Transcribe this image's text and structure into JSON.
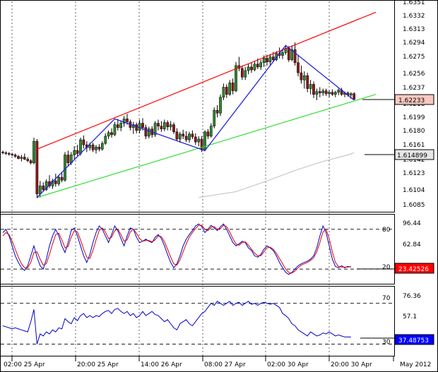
{
  "colors": {
    "background": "#ffffff",
    "candle_up": "#2e8b2e",
    "candle_down": "#8b1a1a",
    "channel_upper": "#ff0000",
    "channel_lower": "#33dd33",
    "zigzag": "#2222dd",
    "moving_average": "#c8c8c8",
    "stoch_main": "#0000cc",
    "stoch_signal": "#dd0000",
    "rsi_line": "#0000cc",
    "frame": "#000000",
    "level_line": "#000000",
    "label_price": "#f6c8c0",
    "label_ma": "#e6e6e6",
    "label_stoch": "#ff0000",
    "label_rsi": "#0000ff"
  },
  "chart_data": [
    {
      "panel": "price",
      "type": "candlestick",
      "ylim": [
        1.6075,
        1.6357
      ],
      "yticks": [
        "1.6351",
        "1.6332",
        "1.6313",
        "1.6294",
        "1.6275",
        "1.6256",
        "1.6237",
        "1.6218",
        "1.6199",
        "1.6180",
        "1.6161",
        "1.6142",
        "1.6123",
        "1.6104",
        "1.6085"
      ],
      "current_price_label": "1.62233",
      "moving_average_label": "1.614899",
      "candles": [
        [
          1.615,
          1.6152,
          1.6147,
          1.6149
        ],
        [
          1.6149,
          1.6151,
          1.6146,
          1.6148
        ],
        [
          1.6148,
          1.615,
          1.6145,
          1.6147
        ],
        [
          1.6147,
          1.6149,
          1.6144,
          1.6146
        ],
        [
          1.6146,
          1.6148,
          1.6142,
          1.6144
        ],
        [
          1.6144,
          1.6146,
          1.614,
          1.6141
        ],
        [
          1.6141,
          1.6146,
          1.6137,
          1.6143
        ],
        [
          1.6143,
          1.6148,
          1.6139,
          1.614
        ],
        [
          1.614,
          1.6143,
          1.6136,
          1.6138
        ],
        [
          1.6138,
          1.614,
          1.6133,
          1.6135
        ],
        [
          1.6135,
          1.617,
          1.6133,
          1.6165
        ],
        [
          1.6165,
          1.6168,
          1.6086,
          1.6092
        ],
        [
          1.6092,
          1.611,
          1.6087,
          1.6103
        ],
        [
          1.6103,
          1.6108,
          1.6095,
          1.6098
        ],
        [
          1.6098,
          1.6112,
          1.6096,
          1.6109
        ],
        [
          1.6109,
          1.6118,
          1.61,
          1.6103
        ],
        [
          1.6103,
          1.6113,
          1.6099,
          1.611
        ],
        [
          1.611,
          1.612,
          1.6102,
          1.6106
        ],
        [
          1.6106,
          1.6118,
          1.6103,
          1.6115
        ],
        [
          1.6115,
          1.6122,
          1.6108,
          1.6111
        ],
        [
          1.6111,
          1.615,
          1.6109,
          1.6146
        ],
        [
          1.6146,
          1.6152,
          1.613,
          1.6135
        ],
        [
          1.6135,
          1.615,
          1.6132,
          1.6146
        ],
        [
          1.6146,
          1.6158,
          1.614,
          1.6152
        ],
        [
          1.6152,
          1.616,
          1.6144,
          1.6148
        ],
        [
          1.6148,
          1.617,
          1.6145,
          1.6167
        ],
        [
          1.6167,
          1.6173,
          1.6155,
          1.616
        ],
        [
          1.616,
          1.6165,
          1.615,
          1.6156
        ],
        [
          1.6156,
          1.6163,
          1.6152,
          1.616
        ],
        [
          1.616,
          1.6163,
          1.615,
          1.6153
        ],
        [
          1.6153,
          1.616,
          1.6148,
          1.6157
        ],
        [
          1.6157,
          1.6161,
          1.6151,
          1.6154
        ],
        [
          1.6154,
          1.6165,
          1.6152,
          1.6162
        ],
        [
          1.6162,
          1.6176,
          1.616,
          1.6172
        ],
        [
          1.6172,
          1.618,
          1.6168,
          1.6177
        ],
        [
          1.6177,
          1.6183,
          1.617,
          1.6174
        ],
        [
          1.6174,
          1.6192,
          1.6172,
          1.6188
        ],
        [
          1.6188,
          1.6196,
          1.618,
          1.6184
        ],
        [
          1.6184,
          1.6194,
          1.6179,
          1.619
        ],
        [
          1.619,
          1.62,
          1.6185,
          1.6196
        ],
        [
          1.6196,
          1.6203,
          1.6188,
          1.6192
        ],
        [
          1.6192,
          1.6195,
          1.618,
          1.6184
        ],
        [
          1.6184,
          1.6192,
          1.6175,
          1.6188
        ],
        [
          1.6188,
          1.6191,
          1.6176,
          1.618
        ],
        [
          1.618,
          1.6195,
          1.6176,
          1.619
        ],
        [
          1.619,
          1.6197,
          1.618,
          1.6184
        ],
        [
          1.6184,
          1.6188,
          1.6168,
          1.6172
        ],
        [
          1.6172,
          1.6185,
          1.6169,
          1.6182
        ],
        [
          1.6182,
          1.6186,
          1.617,
          1.6174
        ],
        [
          1.6174,
          1.6193,
          1.6171,
          1.619
        ],
        [
          1.619,
          1.6195,
          1.618,
          1.6186
        ],
        [
          1.6186,
          1.6193,
          1.6178,
          1.6182
        ],
        [
          1.6182,
          1.6195,
          1.6179,
          1.6191
        ],
        [
          1.6191,
          1.6194,
          1.618,
          1.6185
        ],
        [
          1.6185,
          1.6193,
          1.618,
          1.6188
        ],
        [
          1.6188,
          1.6191,
          1.6175,
          1.6178
        ],
        [
          1.6178,
          1.6183,
          1.6165,
          1.6168
        ],
        [
          1.6168,
          1.6178,
          1.6163,
          1.6175
        ],
        [
          1.6175,
          1.6181,
          1.6168,
          1.6172
        ],
        [
          1.6172,
          1.6179,
          1.6164,
          1.6167
        ],
        [
          1.6167,
          1.6178,
          1.6163,
          1.6175
        ],
        [
          1.6175,
          1.618,
          1.6168,
          1.6171
        ],
        [
          1.6171,
          1.6176,
          1.616,
          1.6164
        ],
        [
          1.6164,
          1.6172,
          1.6158,
          1.6168
        ],
        [
          1.6168,
          1.6172,
          1.615,
          1.6153
        ],
        [
          1.6153,
          1.618,
          1.6151,
          1.6178
        ],
        [
          1.6178,
          1.6182,
          1.6168,
          1.6172
        ],
        [
          1.6172,
          1.619,
          1.617,
          1.6186
        ],
        [
          1.6186,
          1.6212,
          1.6183,
          1.6208
        ],
        [
          1.6208,
          1.6215,
          1.6198,
          1.6204
        ],
        [
          1.6204,
          1.623,
          1.62,
          1.6226
        ],
        [
          1.6226,
          1.6245,
          1.6222,
          1.624
        ],
        [
          1.624,
          1.6244,
          1.6225,
          1.623
        ],
        [
          1.623,
          1.625,
          1.6228,
          1.6246
        ],
        [
          1.6246,
          1.6252,
          1.623,
          1.6235
        ],
        [
          1.6235,
          1.6275,
          1.6233,
          1.627
        ],
        [
          1.627,
          1.6282,
          1.6262,
          1.6266
        ],
        [
          1.6266,
          1.627,
          1.625,
          1.6254
        ],
        [
          1.6254,
          1.6268,
          1.625,
          1.6263
        ],
        [
          1.6263,
          1.6272,
          1.6258,
          1.6268
        ],
        [
          1.6268,
          1.6274,
          1.626,
          1.6264
        ],
        [
          1.6264,
          1.6276,
          1.6262,
          1.6272
        ],
        [
          1.6272,
          1.628,
          1.6265,
          1.6268
        ],
        [
          1.6268,
          1.6278,
          1.6264,
          1.6274
        ],
        [
          1.6274,
          1.6284,
          1.6268,
          1.628
        ],
        [
          1.628,
          1.6285,
          1.627,
          1.6275
        ],
        [
          1.6275,
          1.6286,
          1.6271,
          1.6282
        ],
        [
          1.6282,
          1.6289,
          1.6275,
          1.6278
        ],
        [
          1.6278,
          1.629,
          1.6276,
          1.6287
        ],
        [
          1.6287,
          1.6295,
          1.628,
          1.6284
        ],
        [
          1.6284,
          1.6292,
          1.6279,
          1.6288
        ],
        [
          1.6288,
          1.6298,
          1.6285,
          1.6294
        ],
        [
          1.6294,
          1.6297,
          1.6275,
          1.6278
        ],
        [
          1.6278,
          1.6298,
          1.6276,
          1.6292
        ],
        [
          1.6292,
          1.6302,
          1.627,
          1.6274
        ],
        [
          1.6274,
          1.6285,
          1.6255,
          1.626
        ],
        [
          1.626,
          1.627,
          1.6245,
          1.625
        ],
        [
          1.625,
          1.6262,
          1.6238,
          1.6256
        ],
        [
          1.6256,
          1.626,
          1.6233,
          1.6238
        ],
        [
          1.6238,
          1.625,
          1.623,
          1.6244
        ],
        [
          1.6244,
          1.6248,
          1.6225,
          1.623
        ],
        [
          1.623,
          1.6238,
          1.6222,
          1.6234
        ],
        [
          1.6234,
          1.624,
          1.6226,
          1.6232
        ],
        [
          1.6232,
          1.6238,
          1.6228,
          1.6235
        ],
        [
          1.6235,
          1.6238,
          1.6228,
          1.6231
        ],
        [
          1.6231,
          1.6236,
          1.6226,
          1.6233
        ],
        [
          1.6233,
          1.6237,
          1.6228,
          1.623
        ],
        [
          1.623,
          1.6235,
          1.6226,
          1.6233
        ],
        [
          1.6233,
          1.6238,
          1.6229,
          1.6236
        ],
        [
          1.6236,
          1.6239,
          1.6228,
          1.623
        ],
        [
          1.623,
          1.6234,
          1.6226,
          1.6232
        ],
        [
          1.6232,
          1.6234,
          1.6227,
          1.6229
        ],
        [
          1.6229,
          1.6233,
          1.6224,
          1.6231
        ],
        [
          1.6231,
          1.6233,
          1.6222,
          1.6223
        ]
      ],
      "overlays": {
        "channel_upper": [
          [
            11,
            1.6154
          ],
          [
            120,
            1.6344
          ]
        ],
        "channel_lower": [
          [
            11,
            1.6087
          ],
          [
            120,
            1.623
          ]
        ],
        "zigzag": [
          [
            11,
            1.6087
          ],
          [
            36,
            1.6196
          ],
          [
            65,
            1.6152
          ],
          [
            91,
            1.6298
          ],
          [
            113,
            1.6222
          ]
        ],
        "moving_average": [
          [
            63,
            1.6087
          ],
          [
            75,
            1.6095
          ],
          [
            85,
            1.611
          ],
          [
            95,
            1.6126
          ],
          [
            103,
            1.6137
          ],
          [
            111,
            1.6146
          ],
          [
            113,
            1.6149
          ]
        ]
      }
    },
    {
      "panel": "stochastic",
      "type": "line",
      "ylim": [
        0,
        100
      ],
      "yticks": [
        "96.44",
        "62.84"
      ],
      "levels": [
        "80",
        "20"
      ],
      "current_label": "23.42526",
      "series": [
        {
          "values": [
            75,
            80,
            70,
            55,
            40,
            30,
            22,
            18,
            25,
            40,
            55,
            38,
            25,
            20,
            35,
            55,
            70,
            80,
            70,
            55,
            45,
            60,
            78,
            82,
            70,
            55,
            40,
            30,
            42,
            60,
            75,
            85,
            80,
            70,
            60,
            72,
            85,
            78,
            66,
            55,
            70,
            82,
            80,
            68,
            60,
            62,
            65,
            62,
            60,
            68,
            72,
            66,
            55,
            42,
            30,
            22,
            28,
            40,
            55,
            65,
            72,
            78,
            85,
            88,
            84,
            75,
            80,
            86,
            82,
            78,
            84,
            88,
            80,
            70,
            60,
            55,
            58,
            62,
            60,
            52,
            48,
            40,
            38,
            42,
            50,
            55,
            52,
            48,
            40,
            30,
            22,
            15,
            12,
            15,
            20,
            25,
            28,
            30,
            32,
            35,
            40,
            52,
            70,
            85,
            75,
            55,
            35,
            24,
            22,
            25,
            22,
            24,
            23
          ]
        },
        {
          "values": [
            70,
            75,
            72,
            62,
            50,
            38,
            28,
            22,
            22,
            30,
            45,
            46,
            35,
            26,
            28,
            42,
            58,
            72,
            74,
            64,
            52,
            54,
            68,
            78,
            76,
            64,
            50,
            38,
            36,
            48,
            64,
            78,
            82,
            76,
            66,
            68,
            78,
            80,
            72,
            62,
            64,
            76,
            80,
            74,
            66,
            62,
            63,
            63,
            61,
            64,
            70,
            69,
            61,
            50,
            38,
            28,
            26,
            34,
            46,
            58,
            68,
            75,
            81,
            86,
            86,
            80,
            78,
            83,
            84,
            80,
            81,
            86,
            84,
            76,
            66,
            58,
            56,
            60,
            61,
            56,
            50,
            44,
            40,
            40,
            46,
            52,
            53,
            50,
            44,
            36,
            28,
            20,
            15,
            14,
            17,
            22,
            26,
            28,
            30,
            33,
            37,
            46,
            60,
            76,
            80,
            66,
            46,
            30,
            24,
            23,
            23,
            23,
            24
          ]
        }
      ]
    },
    {
      "panel": "rsi",
      "type": "line",
      "ylim": [
        20,
        85
      ],
      "yticks": [
        "76.36",
        "57.1"
      ],
      "levels": [
        "70",
        "30"
      ],
      "current_label": "37.48753",
      "series": [
        {
          "values": [
            48,
            47,
            46,
            45,
            46,
            45,
            44,
            43,
            42,
            52,
            64,
            30,
            40,
            38,
            42,
            40,
            44,
            42,
            46,
            45,
            55,
            52,
            50,
            56,
            53,
            58,
            60,
            56,
            58,
            56,
            58,
            57,
            60,
            62,
            63,
            60,
            64,
            65,
            62,
            60,
            62,
            58,
            60,
            56,
            58,
            62,
            58,
            60,
            62,
            59,
            58,
            55,
            52,
            54,
            50,
            46,
            44,
            50,
            52,
            54,
            50,
            48,
            52,
            56,
            60,
            62,
            66,
            70,
            68,
            72,
            70,
            68,
            70,
            72,
            68,
            70,
            71,
            68,
            70,
            72,
            69,
            70,
            68,
            70,
            71,
            70,
            69,
            70,
            68,
            66,
            60,
            58,
            55,
            50,
            48,
            44,
            42,
            40,
            38,
            42,
            40,
            38,
            39,
            41,
            40,
            42,
            40,
            38,
            39,
            38,
            37,
            37,
            37
          ]
        }
      ]
    },
    {
      "panel": "time_axis",
      "type": "table",
      "labels": [
        "02:00 25 Apr",
        "20:00 25 Apr",
        "14:00 26 Apr",
        "08:00 27 Apr",
        "02:00 30 Apr",
        "20:00 30 Apr",
        "May 2012"
      ]
    }
  ]
}
